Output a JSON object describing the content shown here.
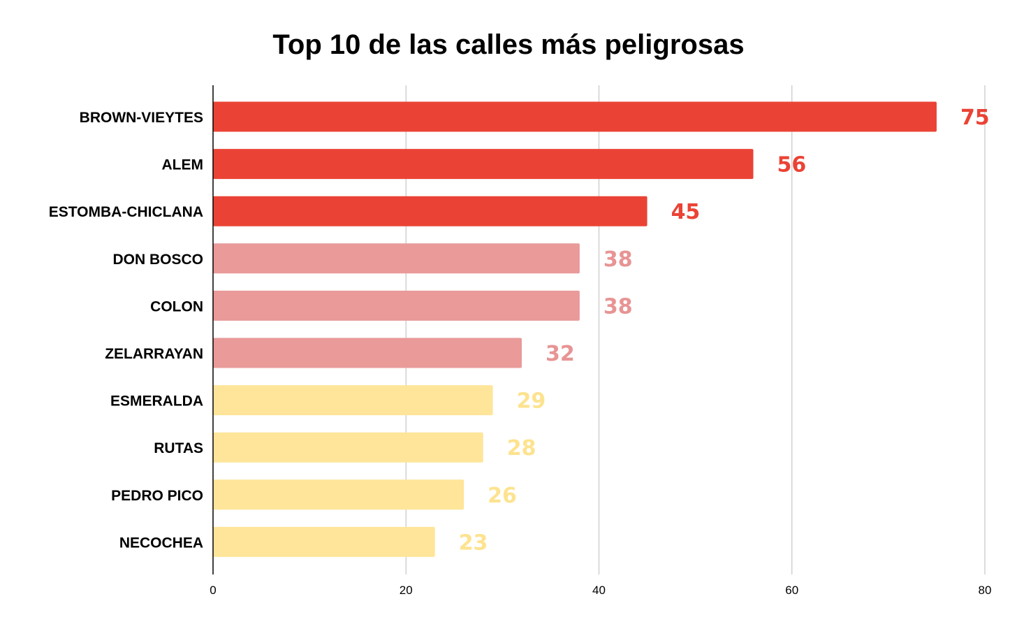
{
  "chart_data": {
    "type": "bar",
    "orientation": "horizontal",
    "title": "Top 10 de las calles más peligrosas",
    "xlabel": "",
    "ylabel": "",
    "xlim": [
      0,
      80
    ],
    "x_ticks": [
      "0",
      "20",
      "40",
      "60",
      "80"
    ],
    "grid": "vertical",
    "legend": "none",
    "categories": [
      "BROWN-VIEYTES",
      "ALEM",
      "ESTOMBA-CHICLANA",
      "DON BOSCO",
      "COLON",
      "ZELARRAYAN",
      "ESMERALDA",
      "RUTAS",
      "PEDRO PICO",
      "NECOCHEA"
    ],
    "values": [
      75,
      56,
      45,
      38,
      38,
      32,
      29,
      28,
      26,
      23
    ],
    "value_labels": [
      "75",
      "56",
      "45",
      "38",
      "38",
      "32",
      "29",
      "28",
      "26",
      "23"
    ],
    "bar_colors": [
      "#ea4335",
      "#ea4335",
      "#ea4335",
      "#e99a99",
      "#e99a99",
      "#e99a99",
      "#fee599",
      "#fee599",
      "#fee599",
      "#fee599"
    ],
    "label_colors": [
      "#ea4335",
      "#ea4335",
      "#ea4335",
      "#e89494",
      "#e89494",
      "#e89494",
      "#fde38f",
      "#fde38f",
      "#fde38f",
      "#fde38f"
    ],
    "grid_color": "#c6c6c6",
    "axis_color": "#000000"
  }
}
